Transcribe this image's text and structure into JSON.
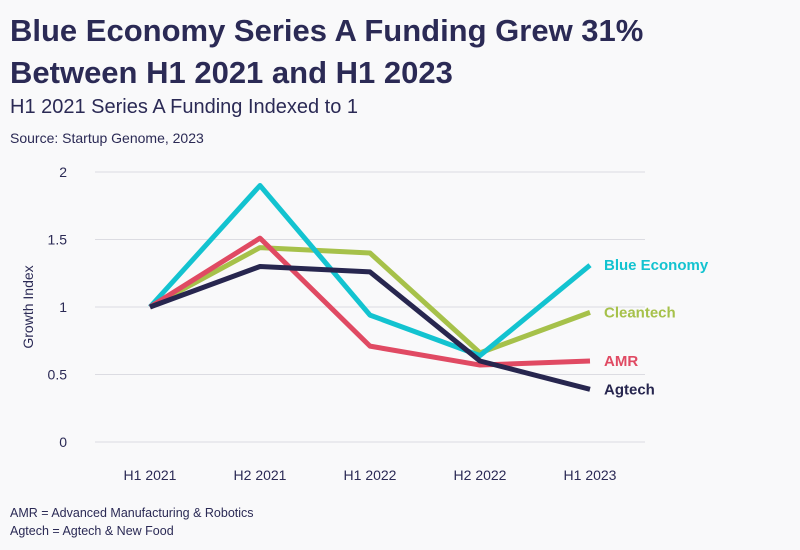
{
  "title_line1": "Blue Economy Series A Funding Grew 31%",
  "title_line2": "Between H1 2021 and H1 2023",
  "subtitle": "H1 2021 Series A Funding Indexed to 1",
  "source": "Source: Startup Genome, 2023",
  "notes": [
    "AMR = Advanced Manufacturing & Robotics",
    "Agtech = Agtech & New Food"
  ],
  "chart_data": {
    "type": "line",
    "title": "Blue Economy Series A Funding Grew 31% Between H1 2021 and H1 2023",
    "subtitle": "H1 2021 Series A Funding Indexed to 1",
    "xlabel": "",
    "ylabel": "Growth Index",
    "categories": [
      "H1 2021",
      "H2 2021",
      "H1 2022",
      "H2 2022",
      "H1 2023"
    ],
    "ylim": [
      0,
      2
    ],
    "yticks": [
      0,
      0.5,
      1,
      1.5,
      2
    ],
    "ytick_labels": [
      "0",
      "0.5",
      "1",
      "1.5",
      "2"
    ],
    "grid": true,
    "series": [
      {
        "name": "Blue Economy",
        "color": "#13c3d0",
        "values": [
          1.0,
          1.9,
          0.94,
          0.64,
          1.31
        ]
      },
      {
        "name": "Cleantech",
        "color": "#a6c14a",
        "values": [
          1.0,
          1.44,
          1.4,
          0.66,
          0.96
        ]
      },
      {
        "name": "AMR",
        "color": "#e04a63",
        "values": [
          1.0,
          1.51,
          0.71,
          0.57,
          0.6
        ]
      },
      {
        "name": "Agtech",
        "color": "#27264f",
        "values": [
          1.0,
          1.3,
          1.26,
          0.6,
          0.39
        ]
      }
    ]
  }
}
